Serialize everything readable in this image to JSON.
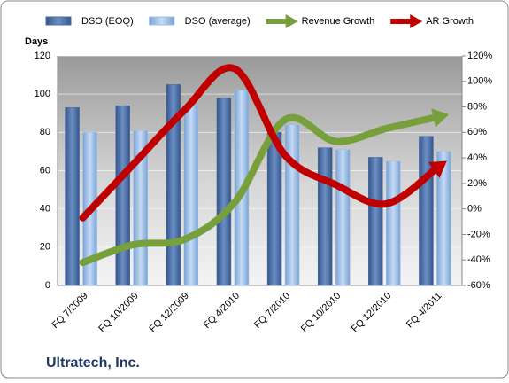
{
  "chart_data": {
    "type": "bar-line",
    "title": "Ultratech, Inc.",
    "y_label": "Days",
    "categories": [
      "FQ 7/2009",
      "FQ 10/2009",
      "FQ 12/2009",
      "FQ 4/2010",
      "FQ 7/2010",
      "FQ 10/2010",
      "FQ 12/2010",
      "FQ 4/2011"
    ],
    "series": [
      {
        "name": "DSO (EOQ)",
        "color": "#4a6ea6",
        "kind": "bar",
        "values": [
          93,
          94,
          105,
          98,
          80,
          72,
          67,
          78
        ]
      },
      {
        "name": "DSO (average)",
        "color": "#9dc0e8",
        "kind": "bar",
        "values": [
          80,
          81,
          94,
          102,
          84,
          71,
          65,
          70
        ]
      },
      {
        "name": "Revenue Growth",
        "color": "#77a03c",
        "kind": "line",
        "axis": "y2",
        "values": [
          -42,
          -28,
          -24,
          5,
          70,
          53,
          63,
          72
        ]
      },
      {
        "name": "AR Growth",
        "color": "#c00000",
        "kind": "line",
        "axis": "y2",
        "values": [
          -7,
          35,
          77,
          110,
          42,
          19,
          4,
          32
        ]
      }
    ],
    "ylim": [
      0,
      120
    ],
    "yticks": [
      0,
      20,
      40,
      60,
      80,
      100,
      120
    ],
    "y2lim": [
      -60,
      120
    ],
    "y2ticks": [
      {
        "value": -60,
        "label": "-60%"
      },
      {
        "value": -40,
        "label": "-40%"
      },
      {
        "value": -20,
        "label": "-20%"
      },
      {
        "value": 0,
        "label": "0%"
      },
      {
        "value": 20,
        "label": "20%"
      },
      {
        "value": 40,
        "label": "40%"
      },
      {
        "value": 60,
        "label": "60%"
      },
      {
        "value": 80,
        "label": "80%"
      },
      {
        "value": 100,
        "label": "100%"
      },
      {
        "value": 120,
        "label": "120%"
      }
    ],
    "grid": true
  }
}
